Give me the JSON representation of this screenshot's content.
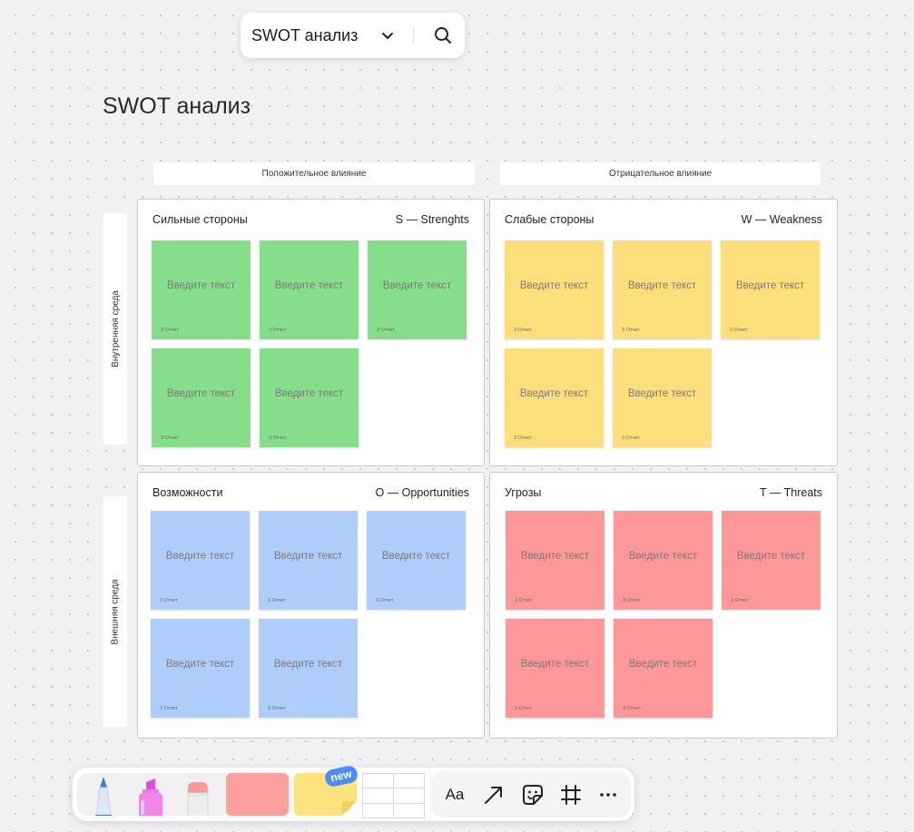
{
  "topbar": {
    "board_name": "SWOT анализ",
    "icons": [
      "chevron-down-icon",
      "search-icon"
    ]
  },
  "page_title": "SWOT анализ",
  "columns": {
    "positive": "Положительное влияние",
    "negative": "Отрицательное влияние"
  },
  "rows": {
    "internal": "Внутренняя среда",
    "external": "Внешняя среда"
  },
  "quadrants": {
    "strengths": {
      "title": "Сильные стороны",
      "code": "S — Strenghts",
      "color": "#86dd8a"
    },
    "weaknesses": {
      "title": "Слабые стороны",
      "code": "W — Weakness",
      "color": "#fcdf7b"
    },
    "opportunities": {
      "title": "Возможности",
      "code": "O — Opportunities",
      "color": "#afcdf9"
    },
    "threats": {
      "title": "Угрозы",
      "code": "T — Threats",
      "color": "#fe9797"
    }
  },
  "sticky_note": {
    "placeholder": "Введите текст",
    "meta": "3 Отчет",
    "count_per_quadrant": 5
  },
  "toolbar": {
    "tools": [
      "pen-icon",
      "marker-icon",
      "eraser-icon",
      "sticker-pink",
      "sticker-yellow",
      "table-icon",
      "text-icon",
      "arrow-icon",
      "sticker-icon",
      "frame-icon",
      "more-icon"
    ],
    "new_badge": "new",
    "text_tool_label": "Aa",
    "accent": "#4b8df6"
  }
}
